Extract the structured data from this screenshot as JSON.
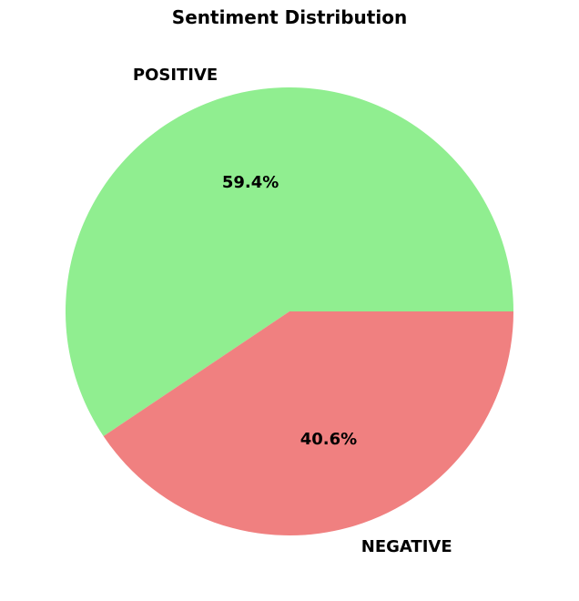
{
  "chart_data": {
    "type": "pie",
    "title": "Sentiment Distribution",
    "categories": [
      "POSITIVE",
      "NEGATIVE"
    ],
    "values": [
      59.4,
      40.6
    ],
    "labels": [
      "59.4%",
      "40.6%"
    ],
    "colors": [
      "#90ee90",
      "#f08080"
    ],
    "legend": "none"
  }
}
